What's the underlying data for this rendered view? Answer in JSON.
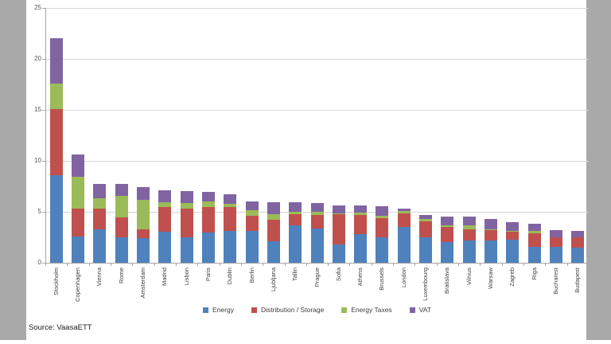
{
  "source_note": "Source: VaasaETT",
  "page": {
    "background_color": "#FFFFFF",
    "margin_color": "#A9A9A9"
  },
  "chart_data": {
    "type": "bar",
    "stacked": true,
    "title": "",
    "xlabel": "",
    "ylabel": "",
    "categories": [
      "Stockholm",
      "Copenhagen",
      "Vienna",
      "Rome",
      "Amsterdam",
      "Madrid",
      "Lisbon",
      "Paris",
      "Dublin",
      "Berlin",
      "Ljubljana",
      "Tallin",
      "Prague",
      "Sofia",
      "Athens",
      "Brussels",
      "London",
      "Luxembourg",
      "Bratislava",
      "Vilnius",
      "Warsaw",
      "Zagreb",
      "Riga",
      "Bucharest",
      "Budapest"
    ],
    "series": [
      {
        "name": "Energy",
        "color": "#4F81BD",
        "values": [
          8.6,
          2.6,
          3.3,
          2.5,
          2.4,
          3.05,
          2.5,
          3.0,
          3.1,
          3.15,
          2.1,
          3.65,
          3.35,
          1.8,
          2.85,
          2.5,
          3.5,
          2.5,
          2.0,
          2.2,
          2.2,
          2.3,
          1.6,
          1.6,
          1.5
        ]
      },
      {
        "name": "Distribution / Storage",
        "color": "#C0504D",
        "values": [
          6.5,
          2.75,
          2.05,
          1.95,
          0.9,
          2.4,
          2.8,
          2.5,
          2.4,
          1.45,
          2.1,
          1.15,
          1.35,
          2.95,
          1.85,
          1.85,
          1.35,
          1.6,
          1.5,
          1.05,
          1.0,
          0.75,
          1.3,
          0.9,
          1.0
        ]
      },
      {
        "name": "Energy Taxes",
        "color": "#9BBB59",
        "values": [
          2.5,
          3.1,
          0.95,
          2.1,
          2.9,
          0.5,
          0.55,
          0.55,
          0.3,
          0.55,
          0.6,
          0.2,
          0.3,
          0.1,
          0.2,
          0.25,
          0.2,
          0.2,
          0.2,
          0.45,
          0.1,
          0.05,
          0.25,
          0.0,
          0.0
        ]
      },
      {
        "name": "VAT",
        "color": "#8064A2",
        "values": [
          4.4,
          2.2,
          1.45,
          1.15,
          1.2,
          1.15,
          1.2,
          0.9,
          0.95,
          0.9,
          1.1,
          0.9,
          0.85,
          0.8,
          0.7,
          0.95,
          0.3,
          0.4,
          0.85,
          0.8,
          1.0,
          0.9,
          0.65,
          0.7,
          0.6
        ]
      }
    ],
    "ylim": [
      0,
      25
    ],
    "yticks": [
      0,
      5,
      10,
      15,
      20,
      25
    ],
    "grid": true,
    "legend_position": "bottom",
    "axis_label_color": "#595959",
    "gridline_color": "#D6D6D6"
  }
}
